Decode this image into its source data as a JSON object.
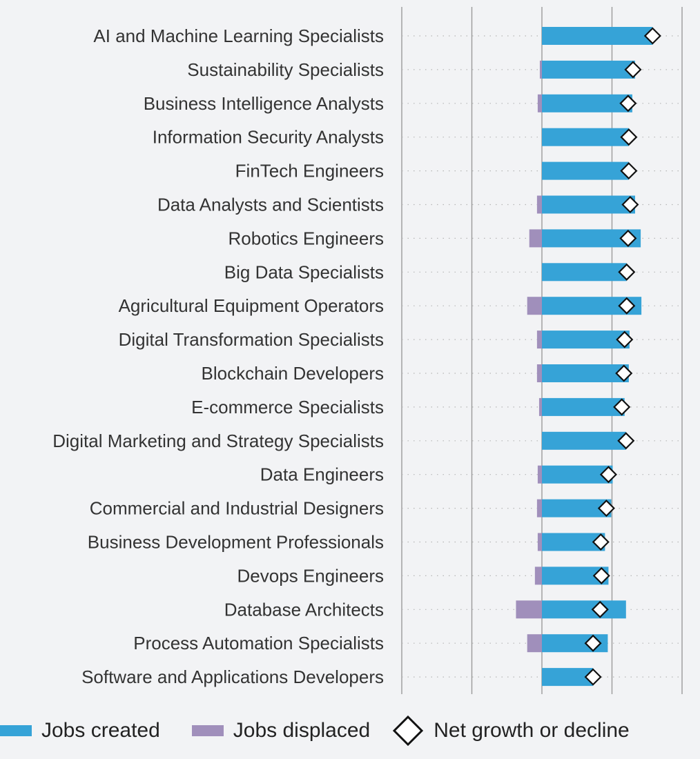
{
  "chart_data": {
    "type": "bar",
    "orientation": "horizontal",
    "title": "",
    "xlabel": "",
    "ylabel": "",
    "xlim": [
      -200,
      200
    ],
    "grid": true,
    "legend_position": "bottom",
    "categories": [
      "AI and Machine Learning Specialists",
      "Sustainability Specialists",
      "Business Intelligence Analysts",
      "Information Security Analysts",
      "FinTech Engineers",
      "Data Analysts and Scientists",
      "Robotics Engineers",
      "Big Data Specialists",
      "Agricultural Equipment Operators",
      "Digital Transformation Specialists",
      "Blockchain Developers",
      "E-commerce Specialists",
      "Digital Marketing and Strategy Specialists",
      "Data Engineers",
      "Commercial and Industrial Designers",
      "Business Development Professionals",
      "Devops Engineers",
      "Database Architects",
      "Process Automation Specialists",
      "Software and Applications Developers"
    ],
    "series": [
      {
        "name": "Jobs created",
        "color": "#36a3d7",
        "values": [
          158,
          133,
          129,
          124,
          124,
          133,
          141,
          121,
          142,
          125,
          124,
          118,
          120,
          101,
          99,
          90,
          95,
          120,
          94,
          73
        ]
      },
      {
        "name": "Jobs displaced",
        "color": "#a08fbb",
        "values": [
          0,
          -3,
          -6,
          0,
          0,
          -7,
          -18,
          0,
          -21,
          -7,
          -7,
          -4,
          0,
          -6,
          -7,
          -6,
          -10,
          -37,
          -21,
          0
        ]
      },
      {
        "name": "Net growth or decline",
        "color": "#ffffff",
        "values": [
          158,
          130,
          123,
          124,
          124,
          126,
          123,
          121,
          121,
          118,
          117,
          114,
          120,
          95,
          92,
          84,
          85,
          83,
          73,
          73
        ]
      }
    ]
  }
}
